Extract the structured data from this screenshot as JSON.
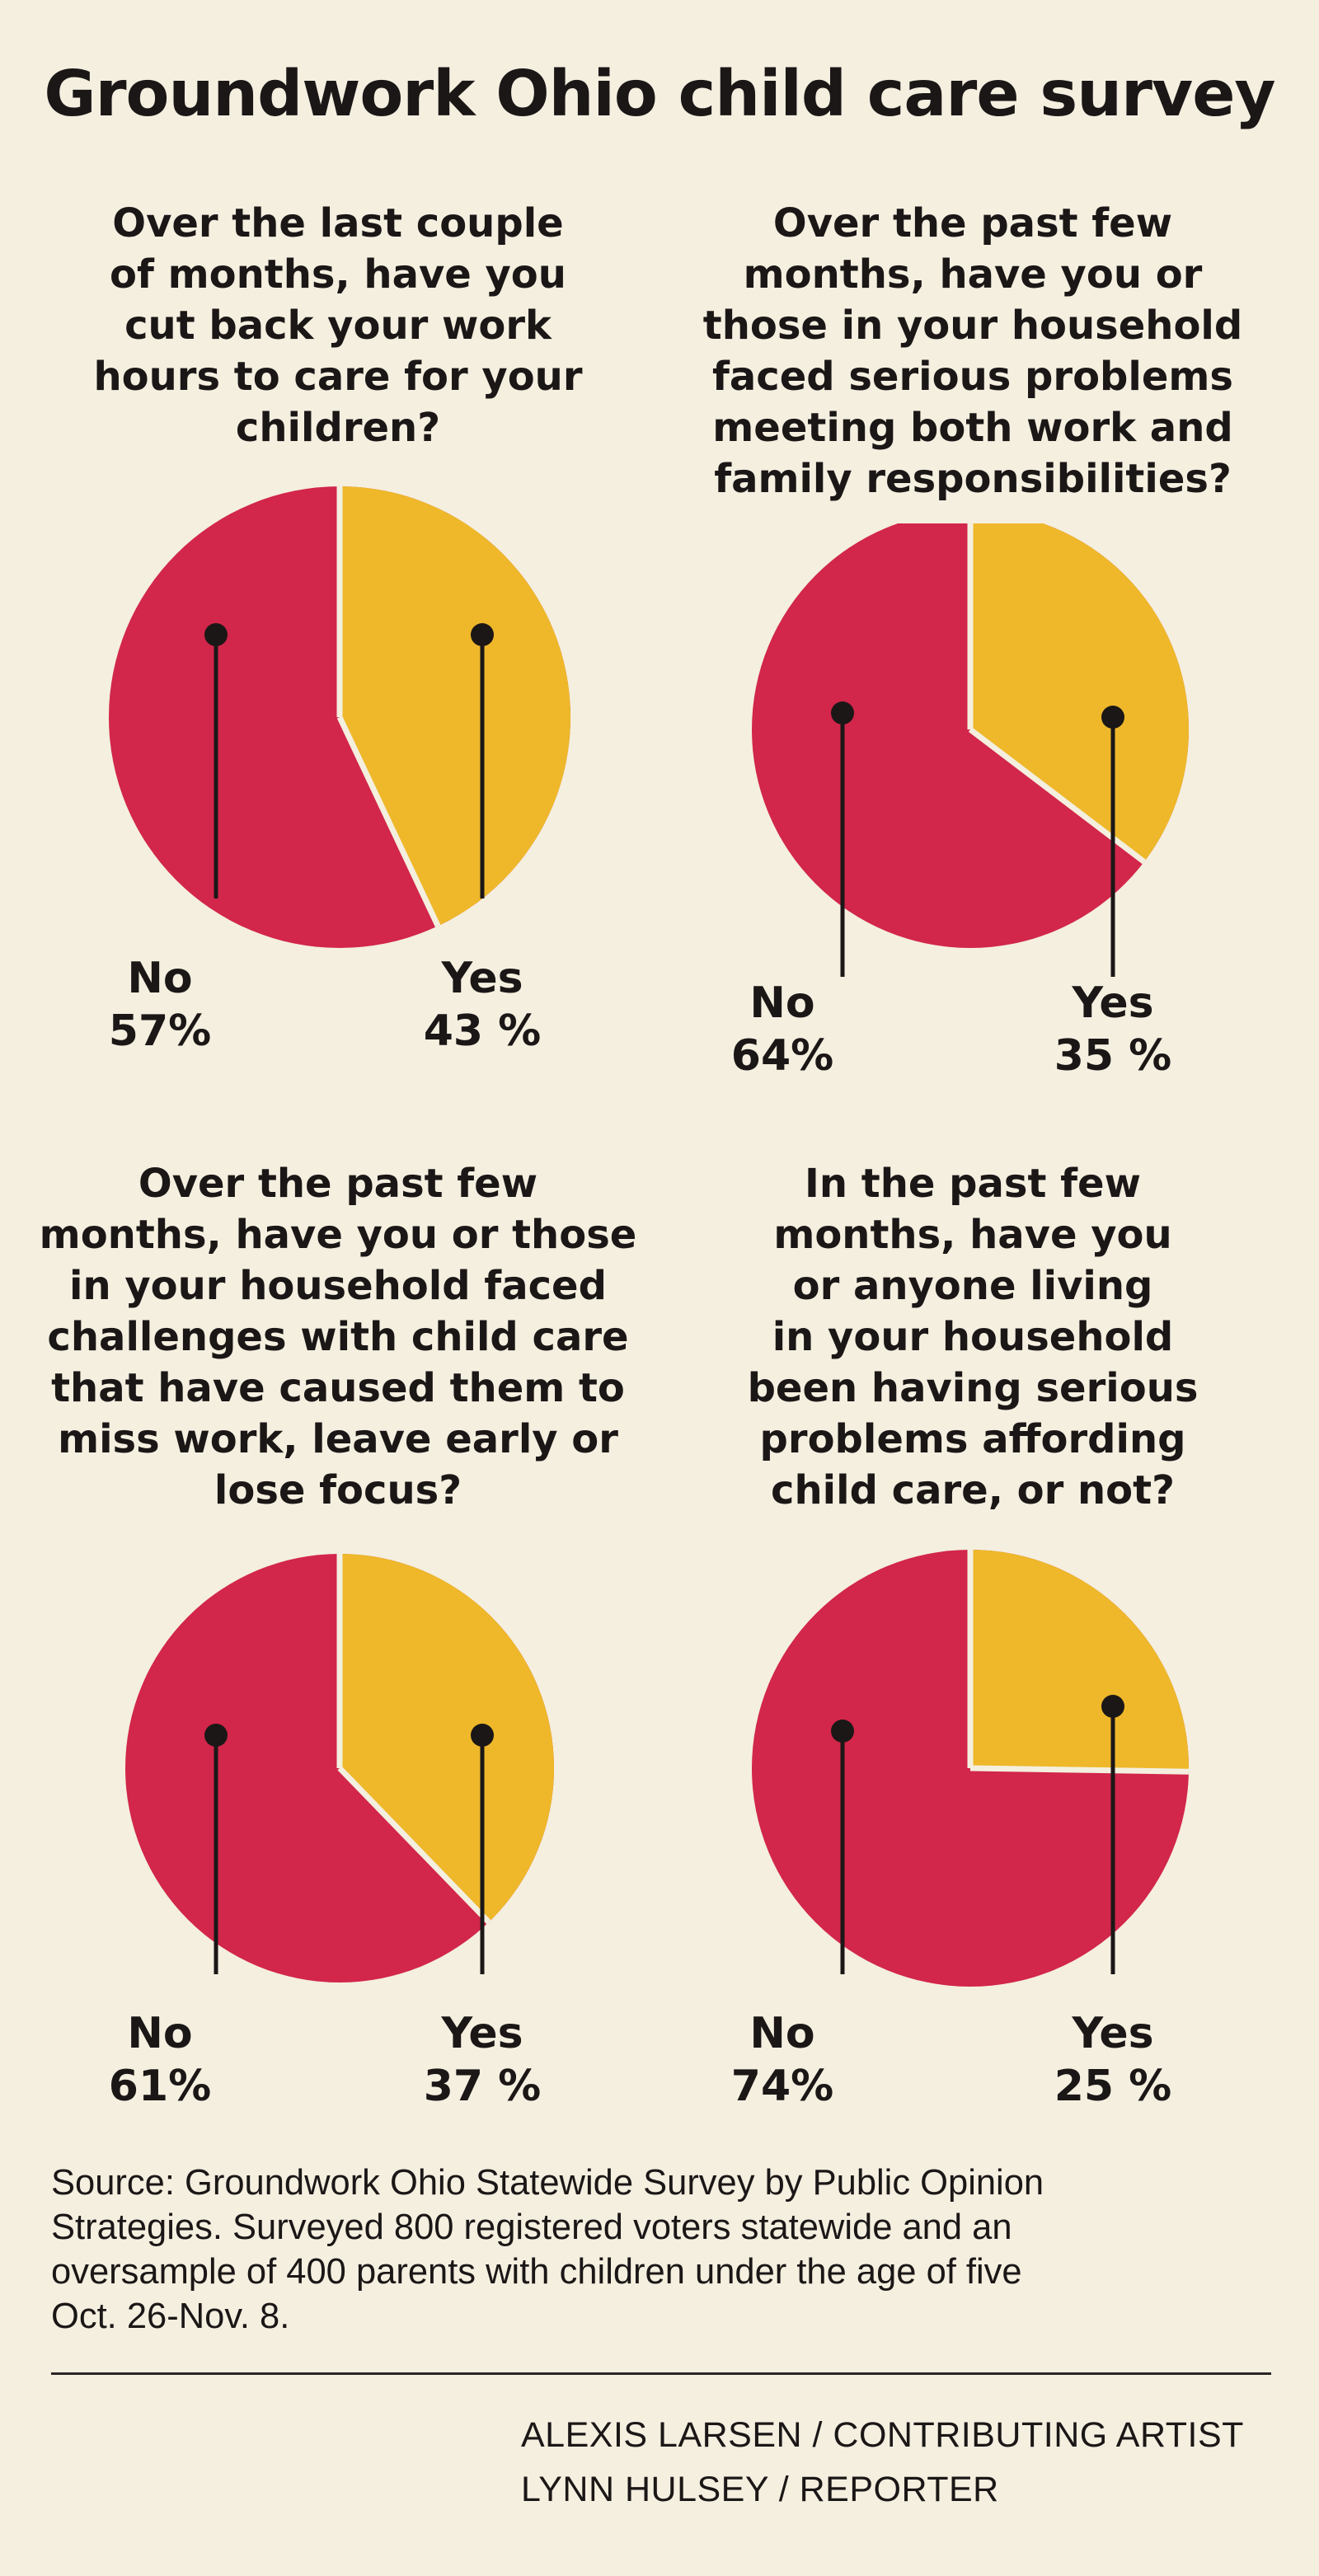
{
  "title": "Groundwork Ohio child care survey",
  "colors": {
    "no": "#d2264a",
    "yes": "#eeb82a",
    "background": "#f4efdf",
    "text": "#1b1717"
  },
  "chart_data": [
    {
      "type": "pie",
      "title": "Over the last couple\nof months, have you\ncut back your work\nhours to care for your\nchildren?",
      "categories": [
        "No",
        "Yes"
      ],
      "values": [
        57,
        43
      ],
      "labels": [
        "57%",
        "43 %"
      ]
    },
    {
      "type": "pie",
      "title": "Over the past few\nmonths, have you or\nthose in your household\nfaced serious problems\nmeeting both work and\nfamily responsibilities?",
      "categories": [
        "No",
        "Yes"
      ],
      "values": [
        64,
        35
      ],
      "labels": [
        "64%",
        "35 %"
      ]
    },
    {
      "type": "pie",
      "title": "Over the past few\nmonths, have you or those\nin your household faced\nchallenges with child care\nthat have caused them to\nmiss work, leave early or\nlose focus?",
      "categories": [
        "No",
        "Yes"
      ],
      "values": [
        61,
        37
      ],
      "labels": [
        "61%",
        "37 %"
      ]
    },
    {
      "type": "pie",
      "title": "In the past few\nmonths, have you\nor anyone living\nin your household\nbeen having serious\nproblems affording\nchild care, or not?",
      "categories": [
        "No",
        "Yes"
      ],
      "values": [
        74,
        25
      ],
      "labels": [
        "74%",
        "25 %"
      ]
    }
  ],
  "source": "Source: Groundwork Ohio Statewide Survey by Public Opinion\nStrategies. Surveyed 800 registered voters statewide and an\noversample of 400 parents with children under the age of five\nOct. 26-Nov. 8.",
  "credits": {
    "artist": "ALEXIS LARSEN / CONTRIBUTING ARTIST",
    "reporter": "LYNN HULSEY / REPORTER"
  }
}
